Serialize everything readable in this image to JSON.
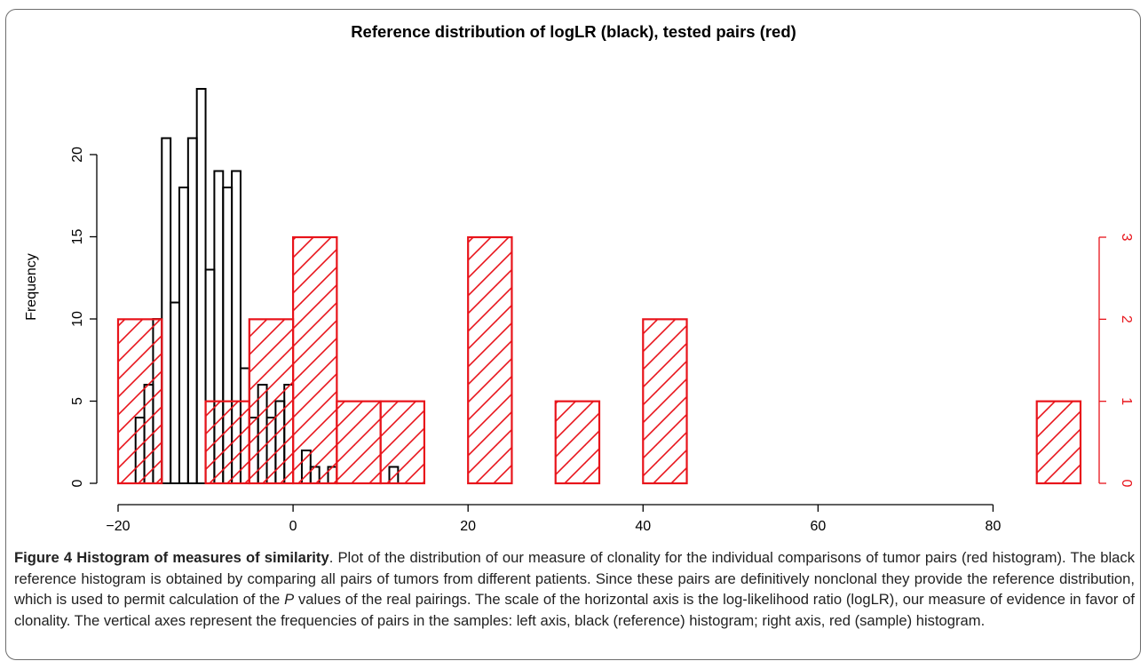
{
  "chart_data": {
    "type": "bar",
    "title": "Reference distribution of logLR (black), tested pairs (red)",
    "xlabel": "",
    "ylabel": "Frequency",
    "xlim": [
      -20,
      90
    ],
    "x_ticks": [
      -20,
      0,
      20,
      40,
      60,
      80
    ],
    "left_axis": {
      "ylim": [
        0,
        24
      ],
      "ticks": [
        0,
        5,
        10,
        15,
        20
      ]
    },
    "right_axis": {
      "ylim": [
        0,
        3
      ],
      "ticks": [
        0,
        1,
        2,
        3
      ],
      "color": "#e8141b"
    },
    "series": [
      {
        "name": "reference",
        "color": "#000000",
        "bin_width": 1,
        "bin_starts": [
          -19,
          -18,
          -17,
          -16,
          -15,
          -14,
          -13,
          -12,
          -11,
          -10,
          -9,
          -8,
          -7,
          -6,
          -5,
          -4,
          -3,
          -2,
          -1,
          0,
          1,
          2,
          3,
          4,
          5,
          6,
          7,
          8,
          9,
          10,
          11
        ],
        "values": [
          0,
          4,
          6,
          10,
          21,
          11,
          18,
          21,
          24,
          13,
          19,
          18,
          19,
          7,
          4,
          6,
          4,
          5,
          6,
          0,
          2,
          1,
          0,
          1,
          0,
          0,
          0,
          0,
          0,
          0,
          1
        ]
      },
      {
        "name": "tested pairs",
        "color": "#e8141b",
        "bin_width": 5,
        "bin_starts": [
          -20,
          -15,
          -10,
          -5,
          0,
          5,
          10,
          15,
          20,
          25,
          30,
          35,
          40,
          45,
          50,
          55,
          60,
          65,
          70,
          75,
          80,
          85
        ],
        "values": [
          2,
          0,
          1,
          2,
          3,
          1,
          1,
          0,
          3,
          0,
          1,
          0,
          2,
          0,
          0,
          0,
          0,
          0,
          0,
          0,
          0,
          1
        ]
      }
    ]
  },
  "caption": {
    "label": "Figure 4 Histogram of measures of similarity",
    "text_part1": ". Plot of the distribution of our measure of clonality for the individual comparisons of tumor pairs (red histogram). The black reference histogram is obtained by comparing all pairs of tumors from different patients. Since these pairs are definitively nonclonal they provide the reference distribution, which is used to permit calculation of the ",
    "p_italic": "P",
    "text_part2": " values of the real pairings. The scale of the horizontal axis is the log-likelihood ratio (logLR), our measure of evidence in favor of clonality. The vertical axes represent the frequencies of pairs in the samples: left axis, black (reference) histogram; right axis, red (sample) histogram."
  }
}
